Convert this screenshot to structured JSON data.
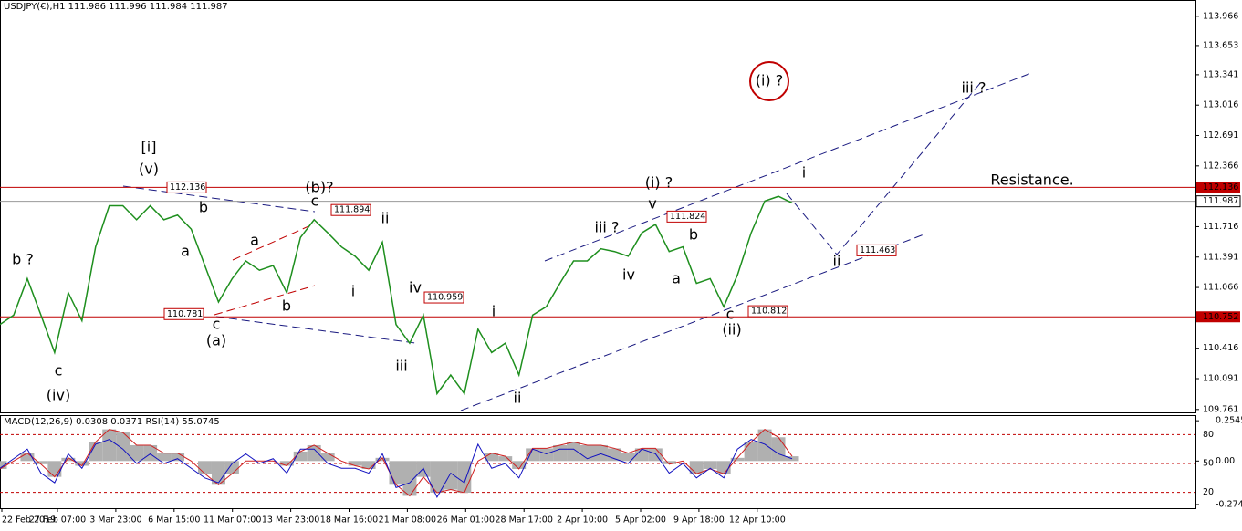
{
  "chart_data": [
    {
      "type": "line",
      "title": "USDJPY(€),H1  111.986 111.996 111.984 111.987",
      "ylim": [
        109.73,
        114.14
      ],
      "yticks": [
        113.966,
        113.653,
        113.341,
        113.016,
        112.691,
        112.366,
        111.716,
        111.391,
        111.066,
        110.416,
        110.091,
        109.761
      ],
      "series": [
        {
          "color": "#1e8f1e",
          "values": [
            110.67,
            110.77,
            111.16,
            110.77,
            110.37,
            111.01,
            110.71,
            111.5,
            111.94,
            111.94,
            111.79,
            111.94,
            111.79,
            111.84,
            111.69,
            111.3,
            110.91,
            111.16,
            111.35,
            111.25,
            111.3,
            111.01,
            111.6,
            111.79,
            111.65,
            111.5,
            111.4,
            111.25,
            111.55,
            110.67,
            110.47,
            110.77,
            109.93,
            110.13,
            109.93,
            110.62,
            110.37,
            110.47,
            110.13,
            110.77,
            110.86,
            111.11,
            111.35,
            111.35,
            111.48,
            111.45,
            111.4,
            111.65,
            111.74,
            111.45,
            111.5,
            111.11,
            111.16,
            110.86,
            111.2,
            111.65,
            111.99,
            112.04,
            111.97
          ]
        }
      ],
      "levels": [
        {
          "value": 112.136,
          "color": "#c00000"
        },
        {
          "value": 111.987,
          "color": "#999999"
        },
        {
          "value": 110.752,
          "color": "#c00000"
        }
      ],
      "price_labels": [
        112.136,
        111.894,
        110.781,
        110.959,
        111.824,
        111.463,
        110.812
      ],
      "time_labels": [
        "22 Feb 2019",
        "27 Feb 07:00",
        "3 Mar 23:00",
        "6 Mar 15:00",
        "11 Mar 07:00",
        "13 Mar 23:00",
        "18 Mar 16:00",
        "21 Mar 08:00",
        "26 Mar 01:00",
        "28 Mar 17:00",
        "2 Apr 10:00",
        "5 Apr 02:00",
        "9 Apr 18:00",
        "12 Apr 10:00"
      ],
      "annotations": [
        {
          "text": "b ?",
          "color": "#e020e0"
        },
        {
          "text": "c",
          "color": "#e020e0"
        },
        {
          "text": "(iv)",
          "color": "#2a8a2a"
        },
        {
          "text": "[i]",
          "color": "#203060"
        },
        {
          "text": "(v)",
          "color": "#2a8a2a"
        },
        {
          "text": "b",
          "color": "#e020e0"
        },
        {
          "text": "a",
          "color": "#e020e0"
        },
        {
          "text": "c",
          "color": "#e020e0"
        },
        {
          "text": "(a)",
          "color": "#2a8a2a"
        },
        {
          "text": "a",
          "color": "#e020e0"
        },
        {
          "text": "b",
          "color": "#e020e0"
        },
        {
          "text": "(b)?",
          "color": "#2a8a2a"
        },
        {
          "text": "c",
          "color": "#e020e0"
        },
        {
          "text": "ii",
          "color": "#e020e0"
        },
        {
          "text": "i",
          "color": "#e020e0"
        },
        {
          "text": "iv",
          "color": "#e020e0"
        },
        {
          "text": "iii",
          "color": "#e020e0"
        },
        {
          "text": "i",
          "color": "#e020e0"
        },
        {
          "text": "ii",
          "color": "#e020e0"
        },
        {
          "text": "iii ?",
          "color": "#e020e0"
        },
        {
          "text": "iv",
          "color": "#e020e0"
        },
        {
          "text": "(i) ?",
          "color": "#2a8a2a"
        },
        {
          "text": "v",
          "color": "#e020e0"
        },
        {
          "text": "b",
          "color": "#e020e0"
        },
        {
          "text": "a",
          "color": "#e020e0"
        },
        {
          "text": "c",
          "color": "#e020e0"
        },
        {
          "text": "(ii)",
          "color": "#2a8a2a"
        },
        {
          "text": "i",
          "color": "#e020e0"
        },
        {
          "text": "ii",
          "color": "#e020e0"
        },
        {
          "text": "iii ?",
          "color": "#e020e0"
        },
        {
          "text": "(i) ?",
          "color": "#2a8a2a"
        },
        {
          "text": "Resistance.",
          "color": "#d01010"
        }
      ]
    },
    {
      "type": "line",
      "title": "MACD(12,26,9) 0.0308 0.0371 RSI(14) 55.0745",
      "ylim": [
        3.5,
        100.3
      ],
      "yticks": [
        80,
        50,
        20
      ],
      "y2lim": [
        -0.298,
        0.29
      ],
      "y2ticks": [
        0.2545,
        {
          "value": 0,
          "label": "0.00"
        },
        -0.2748
      ],
      "series": [
        {
          "color": "#b0b0b0",
          "axis": "y2",
          "values": [
            -0.05,
            0,
            0.05,
            -0.02,
            -0.1,
            0.02,
            -0.03,
            0.12,
            0.2,
            0.18,
            0.1,
            0.1,
            0.05,
            0.05,
            0,
            -0.08,
            -0.15,
            -0.08,
            0,
            0,
            0,
            -0.03,
            0.06,
            0.1,
            0.05,
            0,
            -0.03,
            -0.05,
            0.02,
            -0.15,
            -0.22,
            -0.1,
            -0.2,
            -0.18,
            -0.2,
            0,
            0.05,
            0.03,
            -0.05,
            0.08,
            0.08,
            0.1,
            0.12,
            0.1,
            0.1,
            0.08,
            0.05,
            0.08,
            0.08,
            -0.02,
            0,
            -0.08,
            -0.05,
            -0.08,
            0.02,
            0.12,
            0.2,
            0.15,
            0.03
          ]
        },
        {
          "color": "#1010c0",
          "values": [
            45,
            55,
            65,
            40,
            30,
            60,
            45,
            70,
            75,
            65,
            50,
            60,
            50,
            55,
            45,
            35,
            30,
            50,
            60,
            50,
            55,
            40,
            65,
            65,
            50,
            45,
            45,
            40,
            60,
            25,
            30,
            45,
            15,
            40,
            30,
            70,
            45,
            50,
            35,
            65,
            60,
            65,
            65,
            55,
            60,
            55,
            50,
            65,
            60,
            40,
            50,
            35,
            45,
            35,
            65,
            75,
            70,
            60,
            55
          ]
        }
      ]
    }
  ]
}
